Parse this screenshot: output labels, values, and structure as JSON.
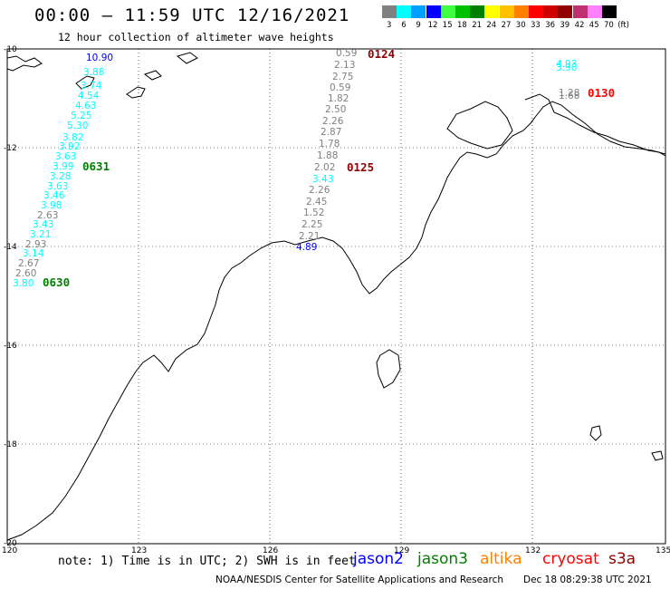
{
  "header": {
    "title": "00:00 – 11:59 UTC 12/16/2021",
    "subtitle": "12 hour collection of altimeter wave heights"
  },
  "legend": {
    "unit": "(ft)",
    "entries": [
      {
        "label": "3",
        "color": "#808080"
      },
      {
        "label": "6",
        "color": "#00ffff"
      },
      {
        "label": "9",
        "color": "#00a0ff"
      },
      {
        "label": "12",
        "color": "#0000ff"
      },
      {
        "label": "15",
        "color": "#40ff40"
      },
      {
        "label": "18",
        "color": "#00c000"
      },
      {
        "label": "21",
        "color": "#008000"
      },
      {
        "label": "24",
        "color": "#ffff00"
      },
      {
        "label": "27",
        "color": "#ffc000"
      },
      {
        "label": "30",
        "color": "#ff8000"
      },
      {
        "label": "33",
        "color": "#ff0000"
      },
      {
        "label": "36",
        "color": "#d00000"
      },
      {
        "label": "39",
        "color": "#900000"
      },
      {
        "label": "42",
        "color": "#c03070"
      },
      {
        "label": "45",
        "color": "#ff80ff"
      },
      {
        "label": "70",
        "color": "#000000"
      }
    ]
  },
  "axes": {
    "lon_ticks": [
      "120",
      "123",
      "126",
      "129",
      "132",
      "135"
    ],
    "lat_ticks": [
      "-10",
      "-12",
      "-14",
      "-16",
      "-18",
      "-20"
    ]
  },
  "passes": [
    {
      "label": "0124",
      "color": "#900000"
    },
    {
      "label": "0125",
      "color": "#900000"
    },
    {
      "label": "0130",
      "color": "#ff0000"
    },
    {
      "label": "0631",
      "color": "#008000"
    },
    {
      "label": "0630",
      "color": "#008000"
    }
  ],
  "track_west": {
    "values": [
      "10.90",
      "3.88",
      "3.74",
      "4.54",
      "4.63",
      "5.25",
      "5.30",
      "3.82",
      "3.92",
      "3.63",
      "3.99",
      "3.28",
      "3.63",
      "3.46",
      "3.98",
      "2.63",
      "3.43",
      "3.21",
      "2.93",
      "3.14",
      "2.67",
      "2.60",
      "3.80"
    ],
    "colors": [
      "#0000ff",
      "#00ffff",
      "#00ffff",
      "#00ffff",
      "#00ffff",
      "#00ffff",
      "#00ffff",
      "#00ffff",
      "#00ffff",
      "#00ffff",
      "#00ffff",
      "#00ffff",
      "#00ffff",
      "#00ffff",
      "#00ffff",
      "#808080",
      "#00ffff",
      "#00ffff",
      "#808080",
      "#00ffff",
      "#808080",
      "#808080",
      "#00ffff"
    ]
  },
  "track_mid": {
    "values": [
      "0.59",
      "2.13",
      "2.75",
      "0.59",
      "1.82",
      "2.50",
      "2.26",
      "2.87",
      "1.78",
      "1.88",
      "2.02",
      "3.43",
      "2.26",
      "2.45",
      "1.52",
      "2.25",
      "2.21",
      "4.89"
    ],
    "colors": [
      "#808080",
      "#808080",
      "#808080",
      "#808080",
      "#808080",
      "#808080",
      "#808080",
      "#808080",
      "#808080",
      "#808080",
      "#808080",
      "#00ffff",
      "#808080",
      "#808080",
      "#808080",
      "#808080",
      "#808080",
      "#0000ff"
    ]
  },
  "track_east": {
    "values": [
      "4.93",
      "3.90",
      "1.28",
      "1.68"
    ],
    "colors": [
      "#00ffff",
      "#00ffff",
      "#808080",
      "#808080"
    ]
  },
  "footer": {
    "note": "note: 1) Time is in UTC; 2) SWH is in feet",
    "satellites": [
      {
        "name": "jason2",
        "color": "#0000ff"
      },
      {
        "name": "jason3",
        "color": "#008000"
      },
      {
        "name": "altika",
        "color": "#ff8000"
      },
      {
        "name": "cryosat",
        "color": "#ff0000"
      },
      {
        "name": "s3a",
        "color": "#900000"
      }
    ],
    "credit": "NOAA/NESDIS Center for Satellite Applications and Research",
    "timestamp": "Dec 18 08:29:38 UTC 2021"
  }
}
